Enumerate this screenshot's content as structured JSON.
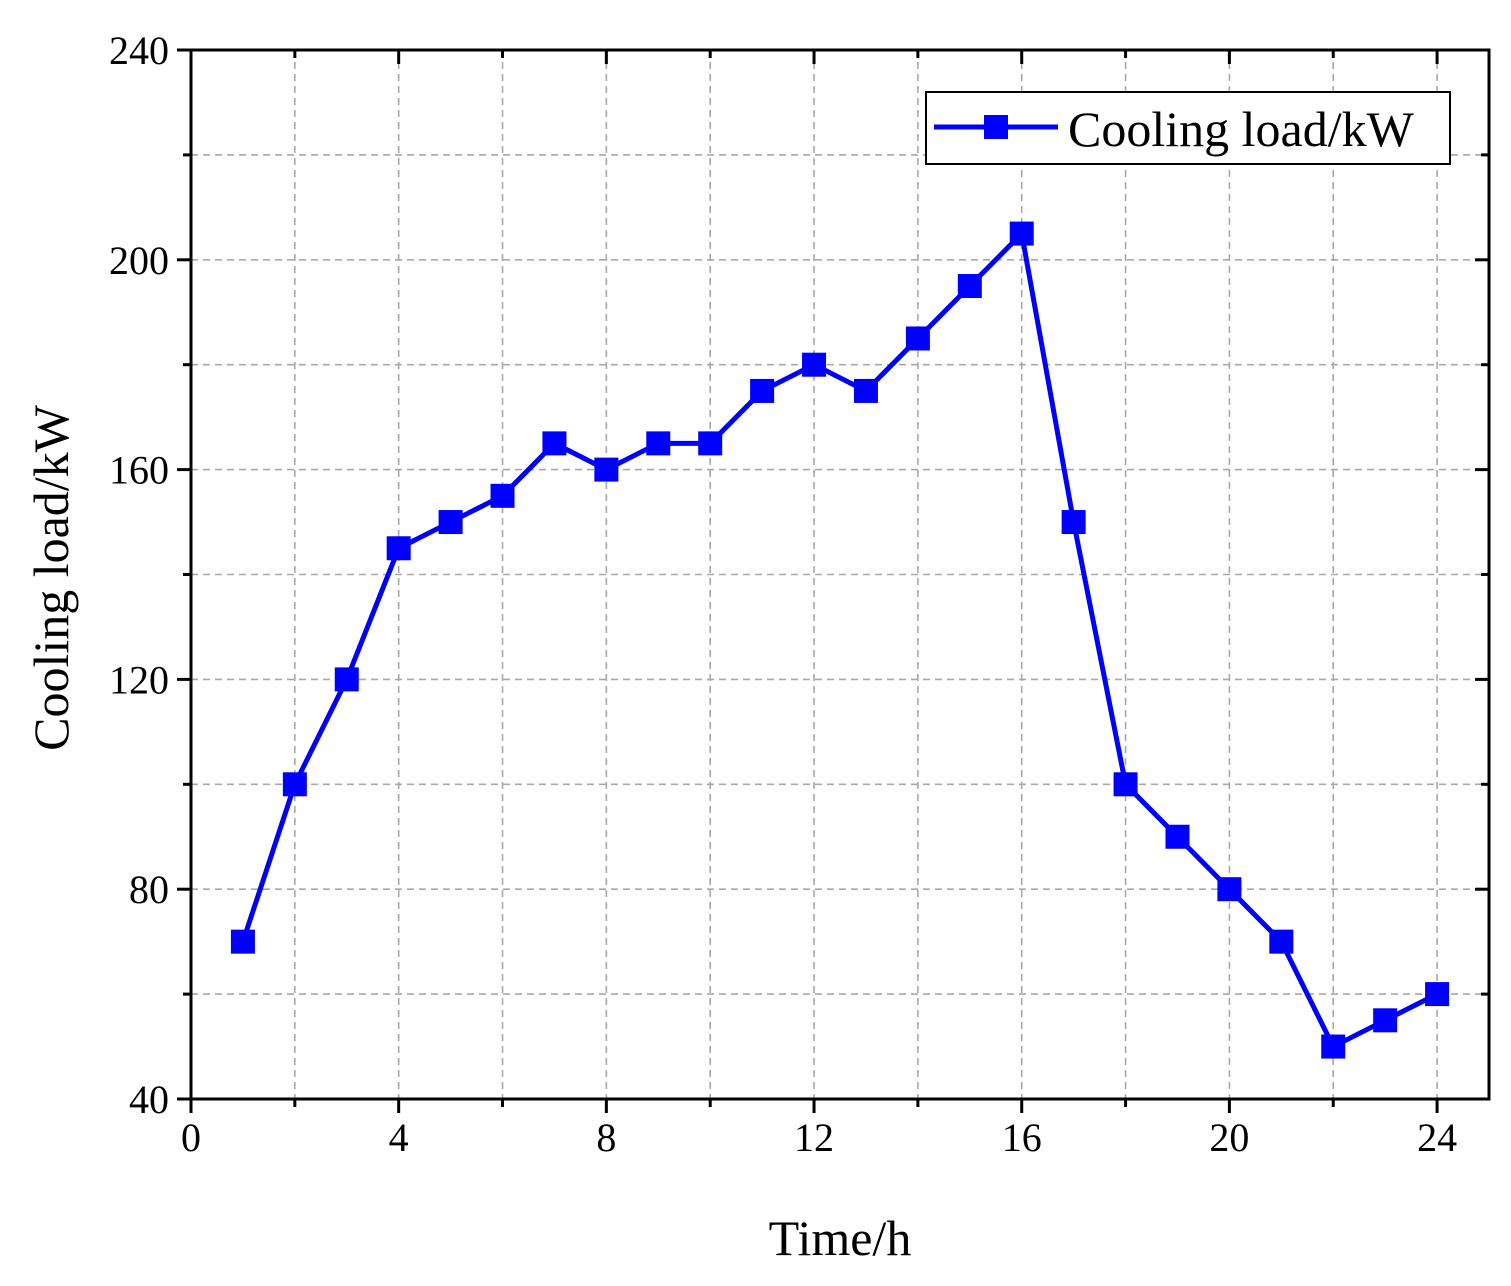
{
  "chart_data": {
    "type": "line",
    "xlabel": "Time/h",
    "ylabel": "Cooling load/kW",
    "xlim": [
      0,
      25
    ],
    "ylim": [
      40,
      240
    ],
    "x_ticks": [
      0,
      4,
      8,
      12,
      16,
      20,
      24
    ],
    "x_minor_ticks": [
      2,
      6,
      10,
      14,
      18,
      22
    ],
    "y_ticks": [
      40,
      80,
      120,
      160,
      200,
      240
    ],
    "y_minor_ticks": [
      60,
      100,
      140,
      180,
      220
    ],
    "grid": true,
    "legend_position": "top-right",
    "series": [
      {
        "name": "Cooling load/kW",
        "color": "#0000ff",
        "marker": "square",
        "x": [
          1,
          2,
          3,
          4,
          5,
          6,
          7,
          8,
          9,
          10,
          11,
          12,
          13,
          14,
          15,
          16,
          17,
          18,
          19,
          20,
          21,
          22,
          23,
          24
        ],
        "y": [
          70,
          100,
          120,
          145,
          150,
          155,
          165,
          160,
          165,
          165,
          175,
          180,
          175,
          185,
          195,
          205,
          150,
          100,
          90,
          80,
          70,
          50,
          55,
          60
        ]
      }
    ]
  }
}
